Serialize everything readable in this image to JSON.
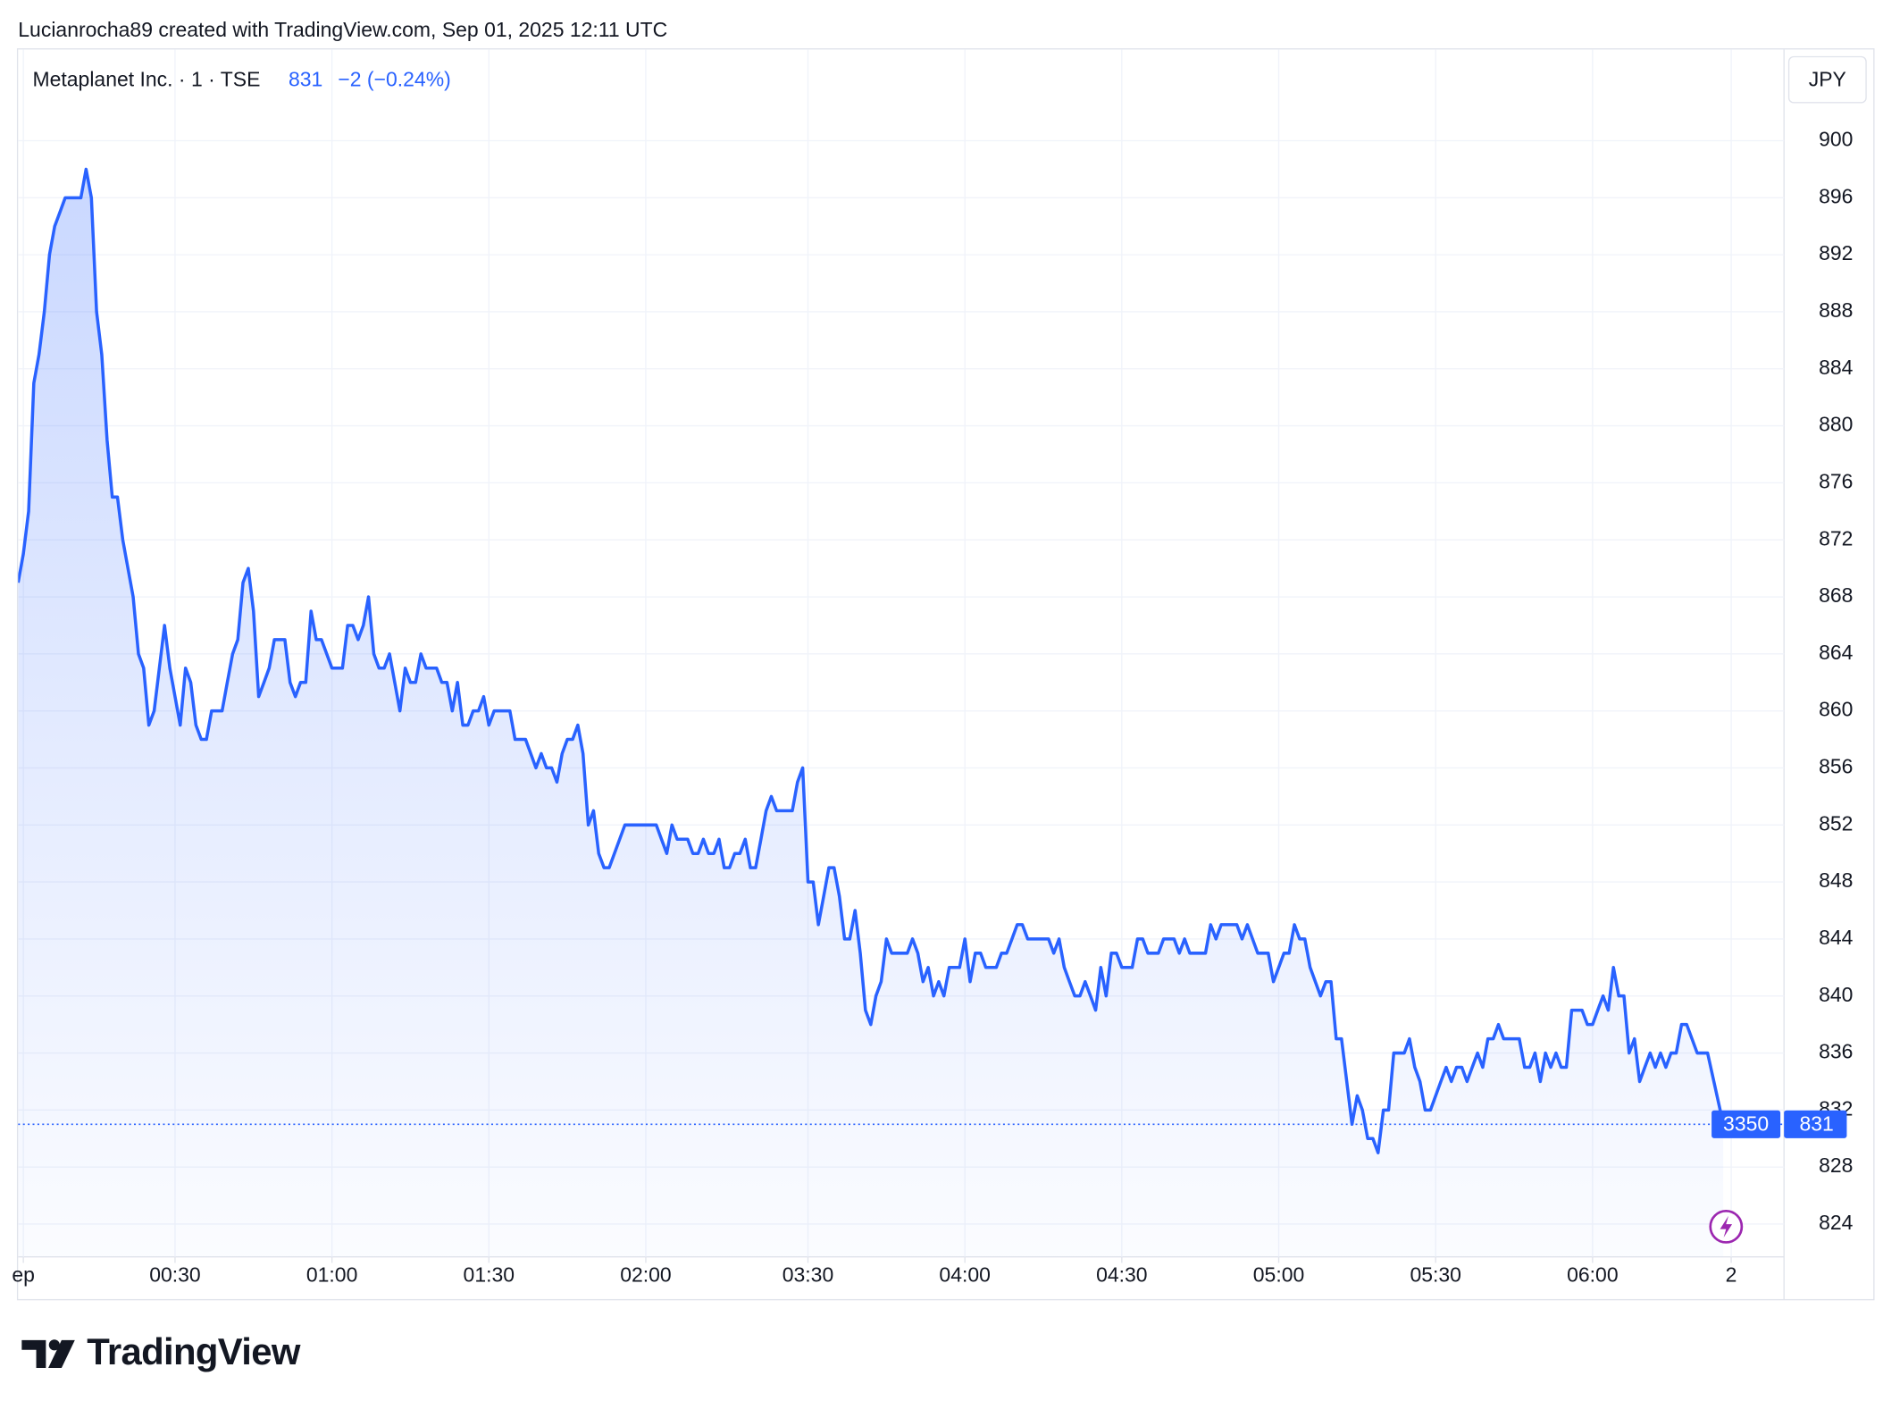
{
  "chart_data": {
    "type": "area",
    "credit": "Lucianrocha89 created with TradingView.com, Sep 01, 2025 12:11 UTC",
    "symbol": "Metaplanet Inc. · 1 · TSE",
    "last_price": 831,
    "change": "−2 (−0.24%)",
    "currency": "JPY",
    "volume_badge": "3350",
    "brand": "TradingView",
    "color": "#2962ff",
    "grid": true,
    "xlim": [
      0,
      337.6
    ],
    "ylim": [
      821.7,
      906.4
    ],
    "yticks": [
      824,
      828,
      832,
      836,
      840,
      844,
      848,
      852,
      856,
      860,
      864,
      868,
      872,
      876,
      880,
      884,
      888,
      892,
      896,
      900
    ],
    "xticks": [
      {
        "value": 1,
        "label": "ep"
      },
      {
        "value": 30,
        "label": "00:30"
      },
      {
        "value": 60,
        "label": "01:00"
      },
      {
        "value": 90,
        "label": "01:30"
      },
      {
        "value": 120,
        "label": "02:00"
      },
      {
        "value": 151,
        "label": "03:30"
      },
      {
        "value": 181,
        "label": "04:00"
      },
      {
        "value": 211,
        "label": "04:30"
      },
      {
        "value": 241,
        "label": "05:00"
      },
      {
        "value": 271,
        "label": "05:30"
      },
      {
        "value": 301,
        "label": "06:00"
      },
      {
        "value": 327.5,
        "label": "2"
      }
    ],
    "series": [
      {
        "name": "Metaplanet Inc.",
        "color": "#2962ff",
        "x": [
          0,
          1,
          2,
          3,
          4,
          5,
          6,
          7,
          8,
          9,
          12,
          13,
          14,
          15,
          16,
          17,
          18,
          19,
          20,
          22,
          23,
          24,
          25,
          26,
          27,
          28,
          29,
          30,
          31,
          32,
          33,
          34,
          35,
          36,
          37,
          39,
          40,
          41,
          42,
          43,
          44,
          45,
          46,
          47,
          48,
          49,
          51,
          52,
          53,
          54,
          55,
          56,
          57,
          58,
          60,
          62,
          63,
          64,
          65,
          66,
          67,
          68,
          69,
          70,
          71,
          72,
          73,
          74,
          75,
          76,
          77,
          78,
          80,
          81,
          82,
          83,
          84,
          85,
          86,
          87,
          88,
          89,
          90,
          91,
          94,
          95,
          97,
          98,
          99,
          100,
          101,
          102,
          103,
          104,
          105,
          106,
          107,
          108,
          109,
          110,
          111,
          112,
          113,
          116,
          122,
          123,
          124,
          125,
          126,
          128,
          129,
          130,
          131,
          132,
          133,
          134,
          135,
          136,
          137,
          138,
          139,
          140,
          141,
          142,
          143,
          144,
          145,
          148,
          149,
          150,
          151,
          152,
          153,
          154,
          155,
          156,
          157,
          158,
          159,
          160,
          161,
          162,
          163,
          164,
          165,
          166,
          167,
          170,
          171,
          172,
          173,
          174,
          175,
          176,
          177,
          178,
          180,
          181,
          182,
          183,
          184,
          185,
          187,
          188,
          189,
          190,
          191,
          192,
          193,
          197,
          198,
          199,
          200,
          201,
          202,
          203,
          204,
          205,
          206,
          207,
          208,
          209,
          210,
          211,
          213,
          214,
          215,
          216,
          218,
          219,
          221,
          222,
          223,
          224,
          227,
          228,
          229,
          230,
          233,
          234,
          235,
          237,
          239,
          240,
          241,
          242,
          243,
          244,
          245,
          246,
          247,
          249,
          250,
          251,
          252,
          253,
          255,
          256,
          257,
          258,
          259,
          260,
          261,
          262,
          263,
          265,
          266,
          267,
          268,
          269,
          270,
          272,
          273,
          274,
          275,
          276,
          277,
          278,
          279,
          280,
          281,
          282,
          283,
          284,
          287,
          288,
          289,
          290,
          291,
          292,
          293,
          294,
          295,
          296,
          297,
          299,
          300,
          301,
          302,
          303,
          304,
          305,
          306,
          307,
          308,
          309,
          310,
          311,
          312,
          313,
          314,
          315,
          316,
          317,
          318,
          319,
          321,
          323,
          326
        ],
        "values": [
          869,
          871,
          874,
          883,
          885,
          888,
          892,
          894,
          895,
          896,
          896,
          898,
          896,
          888,
          885,
          879,
          875,
          875,
          872,
          868,
          864,
          863,
          859,
          860,
          863,
          866,
          863,
          861,
          859,
          863,
          862,
          859,
          858,
          858,
          860,
          860,
          862,
          864,
          865,
          869,
          870,
          867,
          861,
          862,
          863,
          865,
          865,
          862,
          861,
          862,
          862,
          867,
          865,
          865,
          863,
          863,
          866,
          866,
          865,
          866,
          868,
          864,
          863,
          863,
          864,
          862,
          860,
          863,
          862,
          862,
          864,
          863,
          863,
          862,
          862,
          860,
          862,
          859,
          859,
          860,
          860,
          861,
          859,
          860,
          860,
          858,
          858,
          857,
          856,
          857,
          856,
          856,
          855,
          857,
          858,
          858,
          859,
          857,
          852,
          853,
          850,
          849,
          849,
          852,
          852,
          851,
          850,
          852,
          851,
          851,
          850,
          850,
          851,
          850,
          850,
          851,
          849,
          849,
          850,
          850,
          851,
          849,
          849,
          851,
          853,
          854,
          853,
          853,
          855,
          856,
          848,
          848,
          845,
          847,
          849,
          849,
          847,
          844,
          844,
          846,
          843,
          839,
          838,
          840,
          841,
          844,
          843,
          843,
          844,
          843,
          841,
          842,
          840,
          841,
          840,
          842,
          842,
          844,
          841,
          843,
          843,
          842,
          842,
          843,
          843,
          844,
          845,
          845,
          844,
          844,
          843,
          844,
          842,
          841,
          840,
          840,
          841,
          840,
          839,
          842,
          840,
          843,
          843,
          842,
          842,
          844,
          844,
          843,
          843,
          844,
          844,
          843,
          844,
          843,
          843,
          845,
          844,
          845,
          845,
          844,
          845,
          843,
          843,
          841,
          842,
          843,
          843,
          845,
          844,
          844,
          842,
          840,
          841,
          841,
          837,
          837,
          831,
          833,
          832,
          830,
          830,
          829,
          832,
          832,
          836,
          836,
          837,
          835,
          834,
          832,
          832,
          834,
          835,
          834,
          835,
          835,
          834,
          835,
          836,
          835,
          837,
          837,
          838,
          837,
          837,
          835,
          835,
          836,
          834,
          836,
          835,
          836,
          835,
          835,
          839,
          839,
          838,
          838,
          839,
          840,
          839,
          842,
          840,
          840,
          836,
          837,
          834,
          835,
          836,
          835,
          836,
          835,
          836,
          836,
          838,
          838,
          836,
          836,
          831
        ]
      }
    ]
  }
}
